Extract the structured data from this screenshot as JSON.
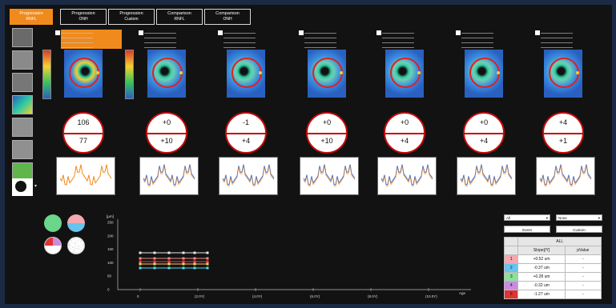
{
  "tabs": [
    {
      "line1": "Progression",
      "line2": "RNFL",
      "active": true
    },
    {
      "line1": "Progression",
      "line2": "ONH",
      "active": false
    },
    {
      "line1": "Progression",
      "line2": "Custom",
      "active": false
    },
    {
      "line1": "Comparison",
      "line2": "RNFL",
      "active": false
    },
    {
      "line1": "Comparison",
      "line2": "ONH",
      "active": false
    }
  ],
  "scans": [
    {
      "circle_top": "106",
      "circle_bottom": "77"
    },
    {
      "circle_top": "+0",
      "circle_bottom": "+10"
    },
    {
      "circle_top": "-1",
      "circle_bottom": "+4"
    },
    {
      "circle_top": "+0",
      "circle_bottom": "+10"
    },
    {
      "circle_top": "+0",
      "circle_bottom": "+4"
    },
    {
      "circle_top": "+0",
      "circle_bottom": "+4"
    },
    {
      "circle_top": "+4",
      "circle_bottom": "+1"
    }
  ],
  "trend_chart": {
    "ylabel": "[µm]",
    "yticks": [
      "250",
      "200",
      "150",
      "100",
      "50",
      "0"
    ],
    "xticks": [
      "0",
      "(2.0Y)",
      "(4.0Y)",
      "(6.0Y)",
      "(8.0Y)",
      "(10.0Y)"
    ],
    "xlabel": "Age",
    "series_colors": [
      "#e8e8e8",
      "#f08a8a",
      "#ff3b3b",
      "#f7d05a",
      "#57d9f0"
    ]
  },
  "controls": {
    "dropdown_left": "All",
    "dropdown_right": "None",
    "event_btn": "Event",
    "custom_btn": "Custom"
  },
  "slope_table": {
    "title": "ALL",
    "col1": "Slope[/Y]",
    "col2": "pValue",
    "rows": [
      {
        "id": "1",
        "slope": "+0.52 um",
        "p": "-",
        "color": "#f4a8b0"
      },
      {
        "id": "2",
        "slope": "-0.37 um",
        "p": "-",
        "color": "#66c4ee"
      },
      {
        "id": "3",
        "slope": "+0.28 um",
        "p": "-",
        "color": "#8be09a"
      },
      {
        "id": "4",
        "slope": "-0.32 um",
        "p": "-",
        "color": "#c98be0"
      },
      {
        "id": "5",
        "slope": "-1.27 um",
        "p": "-",
        "color": "#e23232"
      }
    ]
  }
}
